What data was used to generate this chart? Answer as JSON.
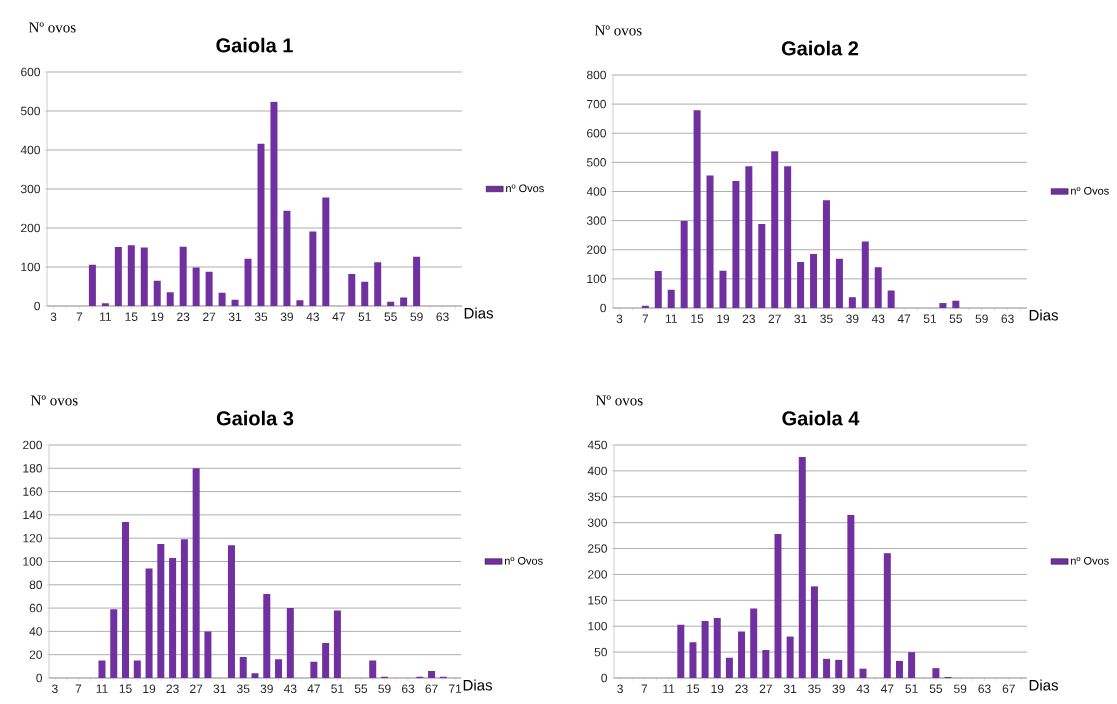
{
  "chart_data": [
    {
      "type": "bar",
      "title": "Gaiola 1",
      "xlabel": "Dias",
      "ylabel": "Nº ovos",
      "grid": "y",
      "legend": "right",
      "ylim": [
        0,
        600
      ],
      "yticks": [
        0,
        100,
        200,
        300,
        400,
        500,
        600
      ],
      "categories": [
        "3",
        null,
        "7",
        null,
        "11",
        null,
        "15",
        null,
        "19",
        null,
        "23",
        null,
        "27",
        null,
        "31",
        null,
        "35",
        null,
        "39",
        null,
        "43",
        null,
        "47",
        null,
        "51",
        null,
        "55",
        null,
        "59",
        null,
        "63",
        null
      ],
      "series": [
        {
          "name": "nº Ovos",
          "color": "#7030a0",
          "values": [
            0,
            0,
            0,
            106,
            7,
            151,
            156,
            150,
            65,
            35,
            152,
            99,
            88,
            34,
            16,
            121,
            416,
            524,
            244,
            15,
            191,
            278,
            0,
            82,
            62,
            112,
            11,
            22,
            126,
            0,
            0,
            0
          ]
        }
      ]
    },
    {
      "type": "bar",
      "title": "Gaiola 2",
      "xlabel": "Dias",
      "ylabel": "Nº ovos",
      "grid": "y",
      "legend": "right",
      "ylim": [
        0,
        800
      ],
      "yticks": [
        0,
        100,
        200,
        300,
        400,
        500,
        600,
        700,
        800
      ],
      "categories": [
        "3",
        null,
        "7",
        null,
        "11",
        null,
        "15",
        null,
        "19",
        null,
        "23",
        null,
        "27",
        null,
        "31",
        null,
        "35",
        null,
        "39",
        null,
        "43",
        null,
        "47",
        null,
        "51",
        null,
        "55",
        null,
        "59",
        null,
        "63",
        null
      ],
      "series": [
        {
          "name": "nº Ovos",
          "color": "#7030a0",
          "values": [
            0,
            0,
            8,
            127,
            63,
            299,
            679,
            455,
            128,
            436,
            487,
            288,
            538,
            487,
            158,
            185,
            370,
            169,
            37,
            228,
            140,
            60,
            0,
            0,
            0,
            17,
            25,
            0,
            0,
            0,
            0,
            0
          ]
        }
      ]
    },
    {
      "type": "bar",
      "title": "Gaiola 3",
      "xlabel": "Dias",
      "ylabel": "Nº ovos",
      "grid": "y",
      "legend": "right",
      "ylim": [
        0,
        200
      ],
      "yticks": [
        0,
        20,
        40,
        60,
        80,
        100,
        120,
        140,
        160,
        180,
        200
      ],
      "categories": [
        "3",
        null,
        "7",
        null,
        "11",
        null,
        "15",
        null,
        "19",
        null,
        "23",
        null,
        "27",
        null,
        "31",
        null,
        "35",
        null,
        "39",
        null,
        "43",
        null,
        "47",
        null,
        "51",
        null,
        "55",
        null,
        "59",
        null,
        "63",
        null,
        "67",
        null,
        "71"
      ],
      "series": [
        {
          "name": "nº Ovos",
          "color": "#7030a0",
          "values": [
            0,
            0,
            0,
            0,
            15,
            59,
            134,
            15,
            94,
            115,
            103,
            119,
            180,
            40,
            0,
            114,
            18,
            4,
            72,
            16,
            60,
            0,
            14,
            30,
            58,
            0,
            0,
            15,
            1,
            0,
            0,
            1,
            6,
            1,
            0
          ]
        }
      ]
    },
    {
      "type": "bar",
      "title": "Gaiola 4",
      "xlabel": "Dias",
      "ylabel": "Nº ovos",
      "grid": "y",
      "legend": "right",
      "ylim": [
        0,
        450
      ],
      "yticks": [
        0,
        50,
        100,
        150,
        200,
        250,
        300,
        350,
        400,
        450
      ],
      "categories": [
        "3",
        null,
        "7",
        null,
        "11",
        null,
        "15",
        null,
        "19",
        null,
        "23",
        null,
        "27",
        null,
        "31",
        null,
        "35",
        null,
        "39",
        null,
        "43",
        null,
        "47",
        null,
        "51",
        null,
        "55",
        null,
        "59",
        null,
        "63",
        null,
        "67",
        null
      ],
      "series": [
        {
          "name": "nº Ovos",
          "color": "#7030a0",
          "values": [
            0,
            0,
            0,
            0,
            0,
            103,
            69,
            110,
            116,
            39,
            90,
            134,
            54,
            278,
            80,
            427,
            177,
            37,
            35,
            315,
            18,
            0,
            241,
            33,
            50,
            0,
            19,
            2,
            0,
            0,
            0,
            0,
            0,
            0
          ]
        }
      ]
    }
  ]
}
